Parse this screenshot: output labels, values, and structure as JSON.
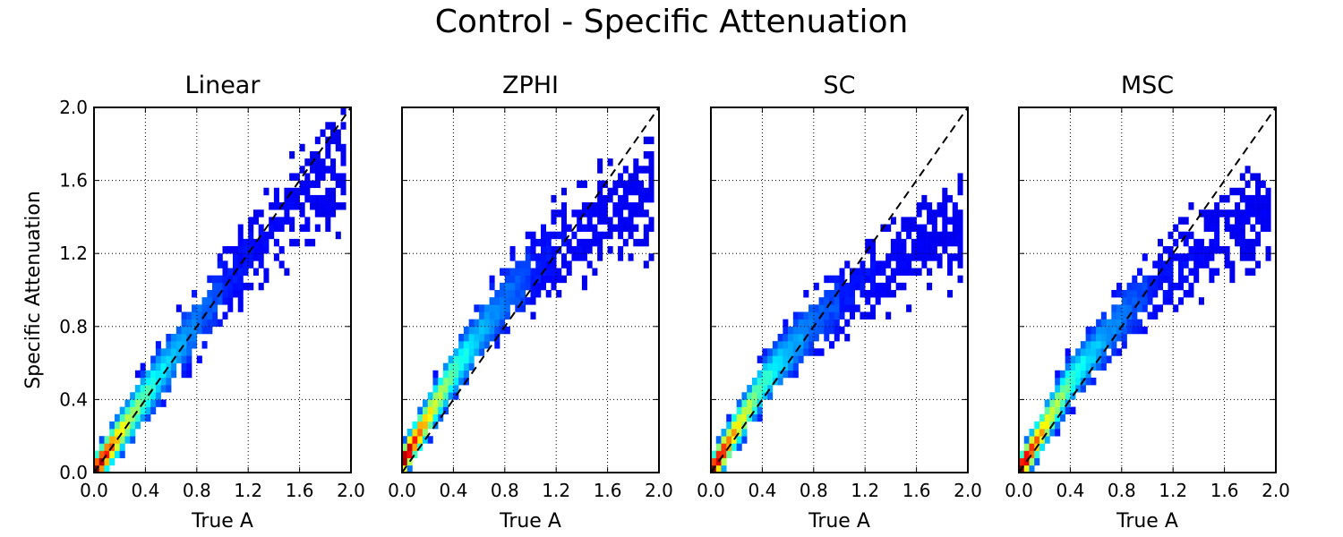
{
  "figure_title": "Control - Specific Attenuation",
  "colormap": "jet",
  "chart_data": [
    {
      "type": "heatmap",
      "title": "Linear",
      "xlabel": "True A",
      "ylabel": "Specific Attenuation",
      "xlim": [
        0.0,
        2.0
      ],
      "ylim": [
        0.0,
        2.0
      ],
      "xticks": [
        "0.0",
        "0.4",
        "0.8",
        "1.2",
        "1.6",
        "2.0"
      ],
      "yticks": [
        "0.0",
        "0.4",
        "0.8",
        "1.2",
        "1.6",
        "2.0"
      ],
      "grid": true,
      "reference_line": {
        "style": "dashed",
        "color": "#000000",
        "x": [
          0.0,
          2.0
        ],
        "y": [
          0.0,
          2.0
        ]
      },
      "density_ridge": {
        "x": [
          0.0,
          0.4,
          0.8,
          1.2,
          1.6,
          2.0
        ],
        "y": [
          0.0,
          0.42,
          0.82,
          1.18,
          1.48,
          1.72
        ]
      },
      "spread_y": [
        0.05,
        0.22
      ],
      "x_extent": [
        0.0,
        1.97
      ]
    },
    {
      "type": "heatmap",
      "title": "ZPHI",
      "xlabel": "True A",
      "ylabel": "",
      "xlim": [
        0.0,
        2.0
      ],
      "ylim": [
        0.0,
        2.0
      ],
      "xticks": [
        "0.0",
        "0.4",
        "0.8",
        "1.2",
        "1.6",
        "2.0"
      ],
      "yticks": [],
      "grid": true,
      "reference_line": {
        "style": "dashed",
        "color": "#000000",
        "x": [
          0.0,
          2.0
        ],
        "y": [
          0.0,
          2.0
        ]
      },
      "density_ridge": {
        "x": [
          0.0,
          0.4,
          0.8,
          1.2,
          1.6,
          2.0
        ],
        "y": [
          0.05,
          0.55,
          0.95,
          1.22,
          1.42,
          1.55
        ]
      },
      "spread_y": [
        0.05,
        0.22
      ],
      "x_extent": [
        0.0,
        1.97
      ]
    },
    {
      "type": "heatmap",
      "title": "SC",
      "xlabel": "True A",
      "ylabel": "",
      "xlim": [
        0.0,
        2.0
      ],
      "ylim": [
        0.0,
        2.0
      ],
      "xticks": [
        "0.0",
        "0.4",
        "0.8",
        "1.2",
        "1.6",
        "2.0"
      ],
      "yticks": [],
      "grid": true,
      "reference_line": {
        "style": "dashed",
        "color": "#000000",
        "x": [
          0.0,
          2.0
        ],
        "y": [
          0.0,
          2.0
        ]
      },
      "density_ridge": {
        "x": [
          0.0,
          0.4,
          0.8,
          1.2,
          1.6,
          2.0
        ],
        "y": [
          0.0,
          0.48,
          0.82,
          1.05,
          1.22,
          1.36
        ]
      },
      "spread_y": [
        0.05,
        0.2
      ],
      "x_extent": [
        0.0,
        1.97
      ]
    },
    {
      "type": "heatmap",
      "title": "MSC",
      "xlabel": "True A",
      "ylabel": "",
      "xlim": [
        0.0,
        2.0
      ],
      "ylim": [
        0.0,
        2.0
      ],
      "xticks": [
        "0.0",
        "0.4",
        "0.8",
        "1.2",
        "1.6",
        "2.0"
      ],
      "yticks": [],
      "grid": true,
      "reference_line": {
        "style": "dashed",
        "color": "#000000",
        "x": [
          0.0,
          2.0
        ],
        "y": [
          0.0,
          2.0
        ]
      },
      "density_ridge": {
        "x": [
          0.0,
          0.4,
          0.8,
          1.2,
          1.6,
          2.0
        ],
        "y": [
          0.0,
          0.5,
          0.85,
          1.1,
          1.3,
          1.45
        ]
      },
      "spread_y": [
        0.05,
        0.2
      ],
      "x_extent": [
        0.0,
        1.97
      ]
    }
  ]
}
